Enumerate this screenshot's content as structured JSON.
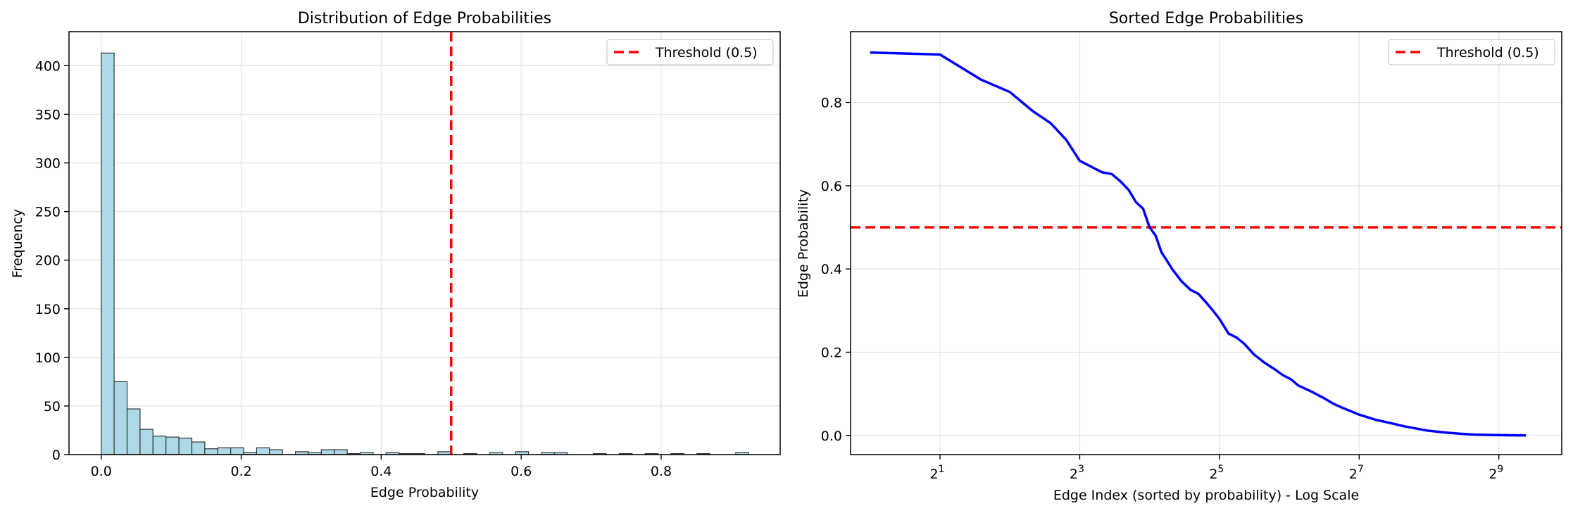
{
  "chart_data": [
    {
      "type": "bar",
      "title": "Distribution of Edge Probabilities",
      "xlabel": "Edge Probability",
      "ylabel": "Frequency",
      "xlim": [
        -0.046,
        0.97
      ],
      "ylim": [
        0,
        435
      ],
      "xticks": [
        0.0,
        0.2,
        0.4,
        0.6,
        0.8
      ],
      "xtick_labels": [
        "0.0",
        "0.2",
        "0.4",
        "0.6",
        "0.8"
      ],
      "yticks": [
        0,
        50,
        100,
        150,
        200,
        250,
        300,
        350,
        400
      ],
      "ytick_labels": [
        "0",
        "50",
        "100",
        "150",
        "200",
        "250",
        "300",
        "350",
        "400"
      ],
      "bin_start": 0.0,
      "bin_width": 0.0185,
      "values": [
        413,
        75,
        47,
        26,
        19,
        18,
        17,
        13,
        6,
        7,
        7,
        2,
        7,
        5,
        0,
        3,
        2,
        5,
        5,
        1,
        2,
        0,
        2,
        1,
        1,
        0,
        3,
        0,
        1,
        0,
        2,
        0,
        3,
        0,
        2,
        2,
        0,
        0,
        1,
        0,
        1,
        0,
        1,
        0,
        1,
        0,
        1,
        0,
        0,
        2
      ],
      "bar_color": "#add8e6",
      "edge_color": "#333333",
      "threshold": {
        "value": 0.5,
        "label": "Threshold (0.5)",
        "color": "#ff0000"
      },
      "legend": "top-right",
      "grid": true
    },
    {
      "type": "line",
      "title": "Sorted Edge Probabilities",
      "xlabel": "Edge Index (sorted by probability) - Log Scale",
      "ylabel": "Edge Probability",
      "xscale": "log2",
      "xlim": [
        0.83,
        3.1
      ],
      "ylim": [
        -0.046,
        0.97
      ],
      "xticks": [
        1,
        3,
        5,
        7,
        9
      ],
      "xtick_base": "2",
      "xtick_exponents": [
        "1",
        "3",
        "5",
        "7",
        "9"
      ],
      "yticks": [
        0.0,
        0.2,
        0.4,
        0.6,
        0.8
      ],
      "ytick_labels": [
        "0.0",
        "0.2",
        "0.4",
        "0.6",
        "0.8"
      ],
      "x": [
        1,
        2,
        3,
        4,
        5,
        6,
        7,
        8,
        9,
        10,
        11,
        12,
        13,
        14,
        15,
        16,
        17,
        18,
        19,
        20,
        22,
        24,
        26,
        28,
        30,
        32,
        35,
        38,
        41,
        45,
        50,
        55,
        60,
        65,
        70,
        80,
        90,
        100,
        110,
        128,
        150,
        180,
        200,
        250,
        300,
        350,
        400,
        500,
        670
      ],
      "y": [
        0.92,
        0.915,
        0.855,
        0.825,
        0.78,
        0.75,
        0.71,
        0.66,
        0.645,
        0.632,
        0.628,
        0.61,
        0.59,
        0.56,
        0.545,
        0.5,
        0.48,
        0.44,
        0.42,
        0.4,
        0.37,
        0.35,
        0.34,
        0.32,
        0.3,
        0.28,
        0.245,
        0.235,
        0.22,
        0.195,
        0.175,
        0.16,
        0.145,
        0.135,
        0.12,
        0.105,
        0.09,
        0.075,
        0.065,
        0.05,
        0.038,
        0.028,
        0.022,
        0.012,
        0.007,
        0.004,
        0.002,
        0.001,
        0.0
      ],
      "line_color": "#0000ff",
      "threshold": {
        "value": 0.5,
        "label": "Threshold (0.5)",
        "color": "#ff0000"
      },
      "legend": "top-right",
      "grid": true
    }
  ]
}
